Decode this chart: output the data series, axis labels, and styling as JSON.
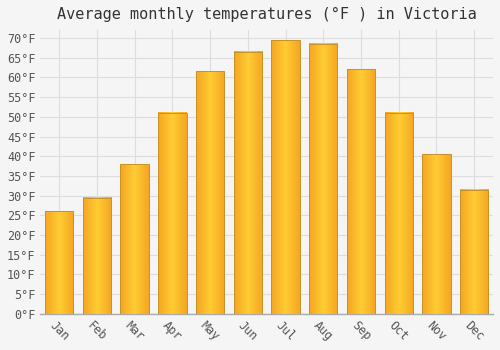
{
  "title": "Average monthly temperatures (°F ) in Victoria",
  "months": [
    "Jan",
    "Feb",
    "Mar",
    "Apr",
    "May",
    "Jun",
    "Jul",
    "Aug",
    "Sep",
    "Oct",
    "Nov",
    "Dec"
  ],
  "values": [
    26,
    29.5,
    38,
    51,
    61.5,
    66.5,
    69.5,
    68.5,
    62,
    51,
    40.5,
    31.5
  ],
  "bar_color_center": "#FFCC33",
  "bar_color_edge": "#F5A623",
  "bar_edge_color": "#C8922A",
  "background_color": "#f5f5f5",
  "grid_color": "#dddddd",
  "ylim": [
    0,
    72
  ],
  "yticks": [
    0,
    5,
    10,
    15,
    20,
    25,
    30,
    35,
    40,
    45,
    50,
    55,
    60,
    65,
    70
  ],
  "title_fontsize": 11,
  "tick_fontsize": 8.5,
  "font_family": "monospace"
}
